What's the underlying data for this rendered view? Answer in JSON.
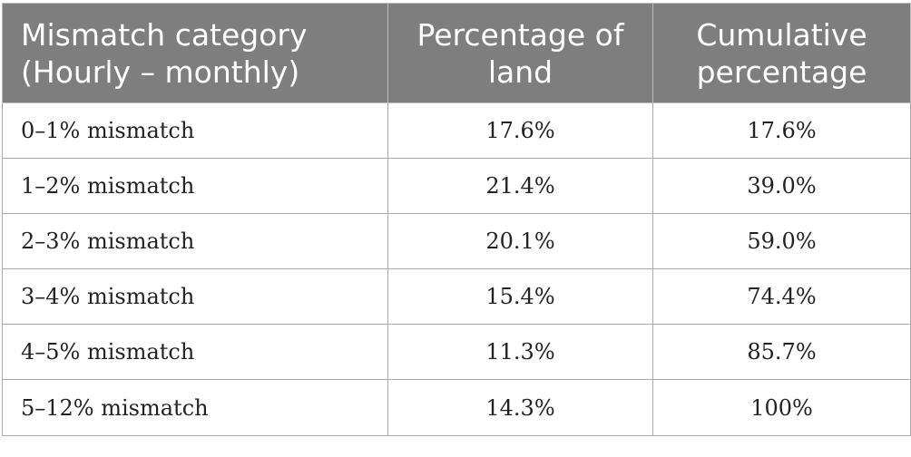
{
  "table": {
    "headers": [
      "Mismatch category (Hourly – monthly)",
      "Percentage of land",
      "Cumulative percentage"
    ],
    "rows": [
      {
        "category": "0–1% mismatch",
        "percentage_of_land": "17.6%",
        "cumulative_percentage": "17.6%"
      },
      {
        "category": "1–2% mismatch",
        "percentage_of_land": "21.4%",
        "cumulative_percentage": "39.0%"
      },
      {
        "category": "2–3% mismatch",
        "percentage_of_land": "20.1%",
        "cumulative_percentage": "59.0%"
      },
      {
        "category": "3–4% mismatch",
        "percentage_of_land": "15.4%",
        "cumulative_percentage": "74.4%"
      },
      {
        "category": "4–5% mismatch",
        "percentage_of_land": "11.3%",
        "cumulative_percentage": "85.7%"
      },
      {
        "category": "5–12% mismatch",
        "percentage_of_land": "14.3%",
        "cumulative_percentage": "100%"
      }
    ]
  },
  "colors": {
    "header_background": "#7e7e7e",
    "header_text": "#ffffff",
    "border": "#a8a8a8"
  }
}
